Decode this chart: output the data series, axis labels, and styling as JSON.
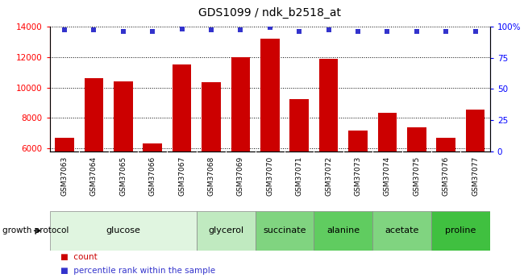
{
  "title": "GDS1099 / ndk_b2518_at",
  "samples": [
    "GSM37063",
    "GSM37064",
    "GSM37065",
    "GSM37066",
    "GSM37067",
    "GSM37068",
    "GSM37069",
    "GSM37070",
    "GSM37071",
    "GSM37072",
    "GSM37073",
    "GSM37074",
    "GSM37075",
    "GSM37076",
    "GSM37077"
  ],
  "counts": [
    6700,
    10600,
    10400,
    6350,
    11500,
    10350,
    12000,
    13200,
    9250,
    11900,
    7200,
    8350,
    7400,
    6700,
    8550
  ],
  "percentiles": [
    97,
    97,
    96,
    96,
    98,
    97,
    97,
    99,
    96,
    97,
    96,
    96,
    96,
    96,
    96
  ],
  "bar_color": "#cc0000",
  "dot_color": "#3333cc",
  "ylim_left": [
    5800,
    14000
  ],
  "ylim_right": [
    0,
    100
  ],
  "yticks_left": [
    6000,
    8000,
    10000,
    12000,
    14000
  ],
  "yticks_right": [
    0,
    25,
    50,
    75,
    100
  ],
  "yticklabels_right": [
    "0",
    "25",
    "50",
    "75",
    "100%"
  ],
  "groups": [
    {
      "label": "glucose",
      "start": 0,
      "end": 5,
      "color": "#e0f5e0"
    },
    {
      "label": "glycerol",
      "start": 5,
      "end": 7,
      "color": "#c0eac0"
    },
    {
      "label": "succinate",
      "start": 7,
      "end": 9,
      "color": "#80d480"
    },
    {
      "label": "alanine",
      "start": 9,
      "end": 11,
      "color": "#60cc60"
    },
    {
      "label": "acetate",
      "start": 11,
      "end": 13,
      "color": "#80d480"
    },
    {
      "label": "proline",
      "start": 13,
      "end": 15,
      "color": "#40c040"
    }
  ],
  "legend_count_label": "count",
  "legend_pct_label": "percentile rank within the sample"
}
